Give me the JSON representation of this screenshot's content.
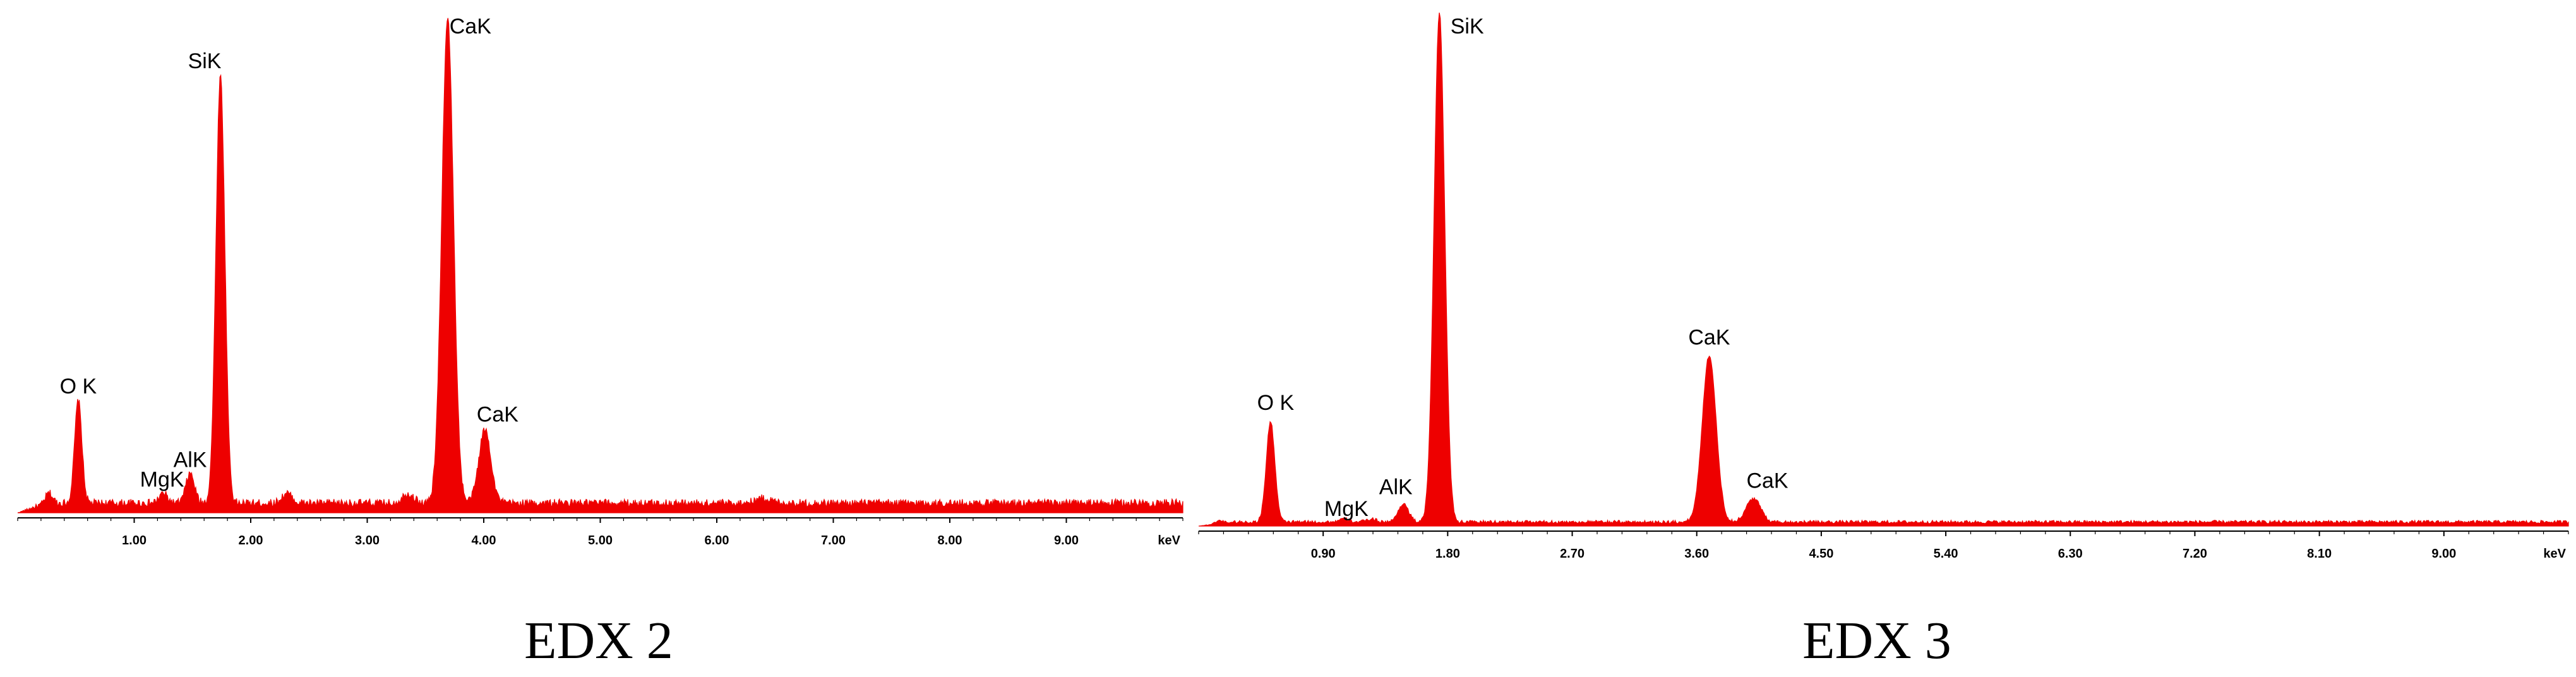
{
  "chart_data": [
    {
      "type": "area",
      "caption": "EDX 2",
      "x_unit_label": "keV",
      "xlim": [
        0.0,
        10.0
      ],
      "ylim": [
        0,
        100
      ],
      "x_ticks": [
        1.0,
        2.0,
        3.0,
        4.0,
        5.0,
        6.0,
        7.0,
        8.0,
        9.0
      ],
      "x_tick_labels": [
        "1.00",
        "2.00",
        "3.00",
        "4.00",
        "5.00",
        "6.00",
        "7.00",
        "8.00",
        "9.00"
      ],
      "color": "#ee0000",
      "series": [
        {
          "peaks": [
            {
              "label": "O K",
              "x": 0.52,
              "y": 22
            },
            {
              "label": "MgK",
              "x": 1.25,
              "y": 3
            },
            {
              "label": "AlK",
              "x": 1.48,
              "y": 7
            },
            {
              "label": "SiK",
              "x": 1.74,
              "y": 88
            },
            {
              "label": "CaK",
              "x": 3.69,
              "y": 100
            },
            {
              "label": "CaK",
              "x": 4.01,
              "y": 16
            }
          ],
          "minor_peaks": [
            {
              "x": 0.27,
              "y": 3
            },
            {
              "x": 2.31,
              "y": 3
            },
            {
              "x": 3.35,
              "y": 3
            },
            {
              "x": 6.4,
              "y": 2
            }
          ],
          "baseline": 2
        }
      ]
    },
    {
      "type": "area",
      "caption": "EDX 3",
      "x_unit_label": "keV",
      "xlim": [
        0.0,
        9.9
      ],
      "ylim": [
        0,
        100
      ],
      "x_ticks": [
        0.9,
        1.8,
        2.7,
        3.6,
        4.5,
        5.4,
        6.3,
        7.2,
        8.1,
        9.0
      ],
      "x_tick_labels": [
        "0.90",
        "1.80",
        "2.70",
        "3.60",
        "4.50",
        "5.40",
        "6.30",
        "7.20",
        "8.10",
        "9.00"
      ],
      "color": "#ee0000",
      "series": [
        {
          "peaks": [
            {
              "label": "O K",
              "x": 0.52,
              "y": 20
            },
            {
              "label": "MgK",
              "x": 1.25,
              "y": 1
            },
            {
              "label": "AlK",
              "x": 1.48,
              "y": 4
            },
            {
              "label": "SiK",
              "x": 1.74,
              "y": 100
            },
            {
              "label": "CaK",
              "x": 3.69,
              "y": 33
            },
            {
              "label": "CaK",
              "x": 4.01,
              "y": 5
            }
          ],
          "minor_peaks": [
            {
              "x": 0.15,
              "y": 1
            },
            {
              "x": 1.05,
              "y": 1
            }
          ],
          "baseline": 0.8
        }
      ]
    }
  ]
}
